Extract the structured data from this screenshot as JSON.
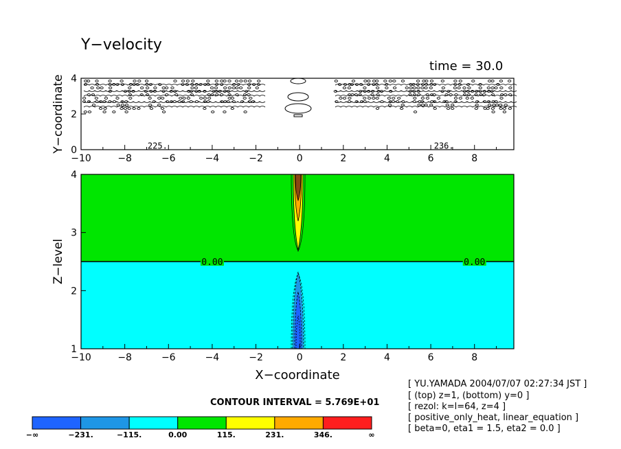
{
  "title": "Y−velocity",
  "time_label": "time = 30.0",
  "contour_interval": "CONTOUR INTERVAL = 5.769E+01",
  "info_lines": [
    "[ YU.YAMADA 2004/07/07 02:27:34 JST ]",
    "[ (top) z=1, (bottom) y=0 ]",
    "[ rezol: k=l=64, z=4 ]",
    "[ positive_only_heat, linear_equation ]",
    "[ beta=0, eta1 = 1.5, eta2 = 0.0 ]"
  ],
  "colors": {
    "level_neg_inf": "#1e64ff",
    "level_neg_231": "#1e96e6",
    "level_neg_115": "#00ffff",
    "level_0": "#00e600",
    "level_115": "#ffff00",
    "level_231": "#ffaa00",
    "level_346": "#ff1e1e"
  },
  "chart_data": [
    {
      "type": "contour",
      "panel": "top",
      "xlabel": "",
      "ylabel": "Y−coordinate",
      "xlim": [
        -10,
        9.8
      ],
      "ylim": [
        0,
        4
      ],
      "x_ticks": [
        "−10",
        "−8",
        "−6",
        "−4",
        "−2",
        "0",
        "2",
        "4",
        "6",
        "8"
      ],
      "y_ticks": [
        "0",
        "2",
        "4"
      ],
      "contour_labels": [
        {
          "text": "225.",
          "x": -6.5,
          "y": 0.05
        },
        {
          "text": "236.",
          "x": 6.6,
          "y": 0.05
        }
      ]
    },
    {
      "type": "contour",
      "panel": "bottom",
      "xlabel": "X−coordinate",
      "ylabel": "Z−level",
      "xlim": [
        -10,
        9.8
      ],
      "ylim": [
        1,
        4
      ],
      "x_ticks": [
        "−10",
        "−8",
        "−6",
        "−4",
        "−2",
        "0",
        "2",
        "4",
        "6",
        "8"
      ],
      "y_ticks": [
        "1",
        "2",
        "3",
        "4"
      ],
      "zero_contour_level": 2.5,
      "contour_labels": [
        {
          "text": "0.00",
          "x": -4.0,
          "y": 2.5
        },
        {
          "text": "0.00",
          "x": 8.0,
          "y": 2.5
        }
      ]
    }
  ],
  "colorbar": {
    "labels": [
      "−∞",
      "−231.",
      "−115.",
      "0.00",
      "115.",
      "231.",
      "346.",
      "∞"
    ],
    "colors": [
      "#1e64ff",
      "#1e96e6",
      "#00ffff",
      "#00e600",
      "#ffff00",
      "#ffaa00",
      "#ff1e1e"
    ]
  }
}
